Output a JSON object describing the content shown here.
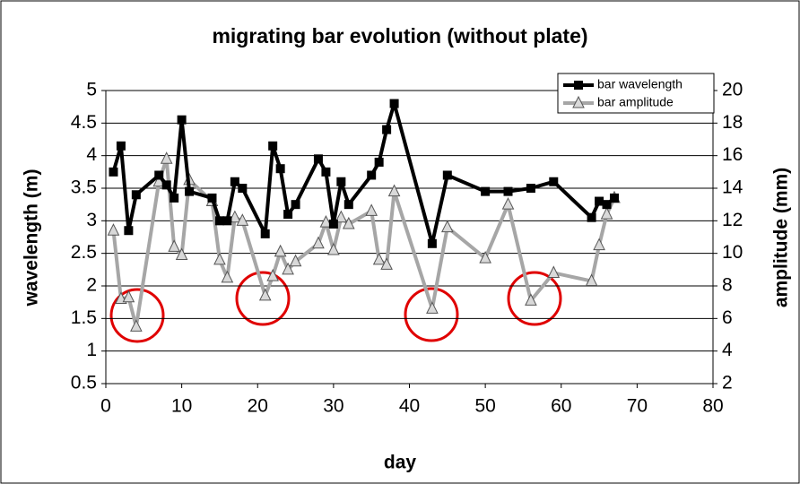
{
  "chart_data": {
    "type": "line",
    "title": "migrating bar evolution (without plate)",
    "x_label": "day",
    "y_label": "wavelength (m)",
    "y2_label": "amplitude (mm)",
    "x": [
      1,
      2,
      3,
      4,
      7,
      8,
      9,
      10,
      11,
      14,
      15,
      16,
      17,
      18,
      21,
      22,
      23,
      24,
      25,
      28,
      29,
      30,
      31,
      32,
      35,
      36,
      37,
      38,
      43,
      45,
      50,
      53,
      56,
      59,
      64,
      65,
      66,
      67
    ],
    "series": [
      {
        "name": "bar wavelength",
        "color": "#000000",
        "marker": "square",
        "values": [
          3.75,
          4.15,
          2.85,
          3.4,
          3.7,
          3.55,
          3.35,
          4.55,
          3.45,
          3.35,
          3.0,
          3.0,
          3.6,
          3.5,
          2.8,
          4.15,
          3.8,
          3.1,
          3.25,
          3.95,
          3.75,
          2.95,
          3.6,
          3.25,
          3.7,
          3.9,
          4.4,
          4.8,
          2.65,
          3.7,
          3.45,
          3.45,
          3.5,
          3.6,
          3.05,
          3.3,
          3.25,
          3.35
        ]
      },
      {
        "name": "bar amplitude",
        "color": "#a6a6a6",
        "marker": "triangle",
        "axis": "y2",
        "values": [
          11.4,
          7.2,
          7.3,
          5.5,
          14.4,
          15.8,
          10.4,
          9.9,
          14.5,
          13.2,
          9.6,
          8.5,
          12.2,
          12.0,
          7.4,
          8.6,
          10.1,
          9.0,
          9.5,
          10.6,
          11.9,
          10.2,
          12.2,
          11.8,
          12.6,
          9.6,
          9.3,
          13.8,
          6.6,
          11.6,
          9.7,
          13.0,
          7.1,
          8.8,
          8.3,
          10.5,
          12.4,
          13.4
        ]
      }
    ],
    "xlim": [
      0,
      80
    ],
    "xticks": [
      0,
      10,
      20,
      30,
      40,
      50,
      60,
      70,
      80
    ],
    "ylim": [
      0.5,
      5
    ],
    "yticks": [
      0.5,
      1,
      1.5,
      2,
      2.5,
      3,
      3.5,
      4,
      4.5,
      5
    ],
    "y2lim": [
      2,
      20
    ],
    "y2ticks": [
      2,
      4,
      6,
      8,
      10,
      12,
      14,
      16,
      18,
      20
    ],
    "grid": true,
    "legend": "upper right"
  }
}
